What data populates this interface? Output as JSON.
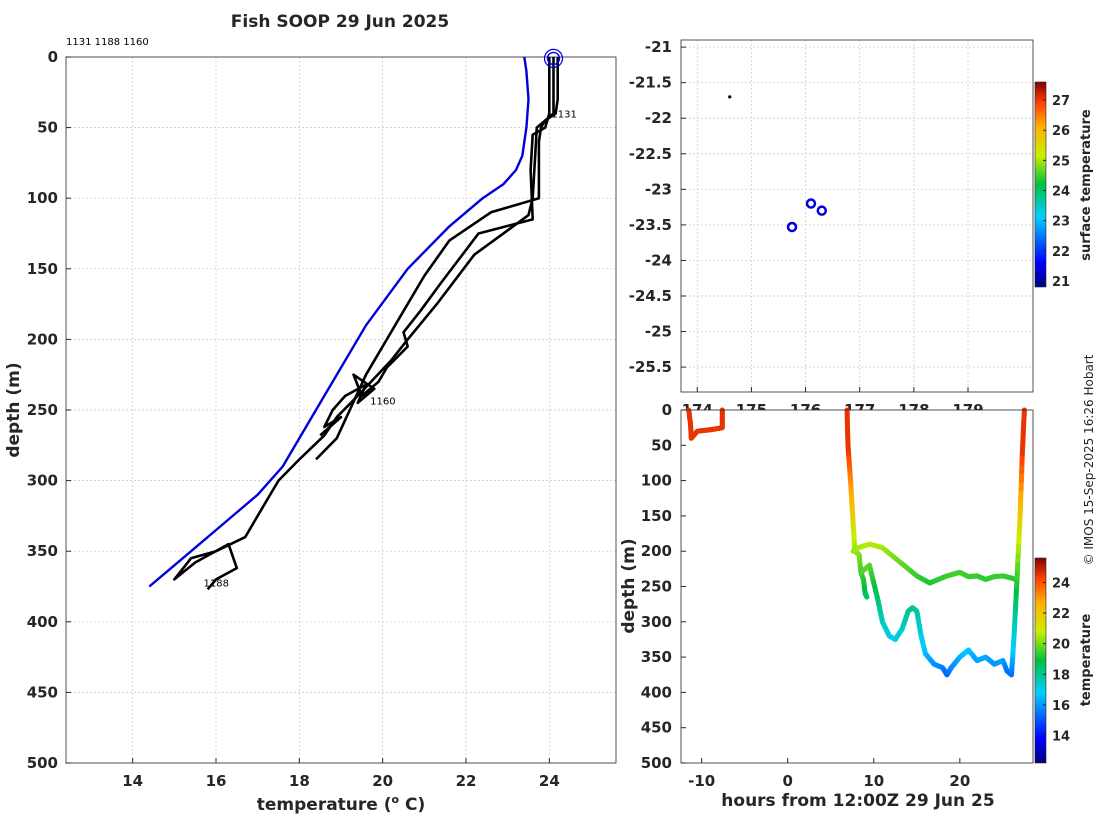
{
  "title": "Fish SOOP 29 Jun 2025",
  "credit": "© IMOS 15-Sep-2025 16:26 Hobart",
  "colors": {
    "blue": "#0000dd",
    "black": "#000000"
  },
  "chart_data": [
    {
      "type": "line",
      "id": "profile",
      "xlabel": "temperature (",
      "xlabel_sup": "o",
      "xlabel_unit": " C)",
      "ylabel": "depth (m)",
      "xlim": [
        12.4,
        25.6
      ],
      "ylim": [
        0,
        500
      ],
      "y_reversed": true,
      "xticks": [
        14,
        16,
        18,
        20,
        22,
        24
      ],
      "yticks": [
        0,
        50,
        100,
        150,
        200,
        250,
        300,
        350,
        400,
        450,
        500
      ],
      "top_labels": "1131 1188 1160",
      "series": [
        {
          "name": "climatology",
          "color": "#0000dd",
          "x": [
            23.4,
            23.45,
            23.5,
            23.45,
            23.35,
            23.2,
            22.9,
            22.4,
            21.6,
            20.6,
            19.6,
            18.6,
            17.6,
            17.0,
            16.2,
            15.2,
            14.4
          ],
          "y": [
            0,
            10,
            30,
            50,
            70,
            80,
            90,
            100,
            120,
            150,
            190,
            240,
            290,
            310,
            330,
            355,
            375
          ]
        },
        {
          "name": "1131",
          "color": "#000000",
          "label": "1131",
          "label_x": 24.05,
          "label_y": 43,
          "x": [
            24.2,
            24.2,
            24.15,
            23.9,
            23.8,
            23.75,
            23.75,
            22.6,
            21.6,
            21.0,
            20.4,
            19.6,
            18.9,
            18.4
          ],
          "y": [
            0,
            30,
            40,
            45,
            50,
            60,
            100,
            110,
            130,
            155,
            185,
            225,
            270,
            285
          ]
        },
        {
          "name": "1160",
          "color": "#000000",
          "label": "1160",
          "label_x": 19.7,
          "label_y": 246,
          "x": [
            24.0,
            24.0,
            23.9,
            23.6,
            23.55,
            23.6,
            22.3,
            21.4,
            20.9,
            20.5,
            20.6,
            20.1,
            19.9,
            19.5,
            19.3,
            19.8,
            19.4,
            19.6,
            19.1,
            18.8,
            18.6,
            19.0,
            18.5
          ],
          "y": [
            0,
            40,
            50,
            55,
            80,
            115,
            125,
            160,
            180,
            195,
            205,
            220,
            230,
            240,
            225,
            235,
            245,
            232,
            240,
            250,
            262,
            255,
            268
          ]
        },
        {
          "name": "1188",
          "color": "#000000",
          "label": "1188",
          "label_x": 15.7,
          "label_y": 375,
          "x": [
            24.1,
            24.1,
            23.7,
            23.6,
            23.5,
            22.2,
            21.3,
            20.6,
            20.2,
            19.4,
            18.9,
            18.6,
            18.0,
            17.5,
            17.1,
            16.7,
            16.0,
            15.4,
            15.0,
            15.5,
            16.3,
            16.5,
            16.0,
            15.8
          ],
          "y": [
            0,
            40,
            50,
            100,
            112,
            140,
            175,
            200,
            215,
            240,
            255,
            268,
            285,
            300,
            320,
            340,
            350,
            355,
            370,
            358,
            345,
            362,
            370,
            377
          ]
        }
      ],
      "open_circle": {
        "x": 24.1,
        "y": 1
      }
    },
    {
      "type": "scatter",
      "id": "map",
      "xlim": [
        173.7,
        180.2
      ],
      "ylim": [
        -25.85,
        -20.9
      ],
      "xticks": [
        "174",
        "175",
        "176",
        "177",
        "178",
        "179"
      ],
      "xtick_values": [
        174,
        175,
        176,
        177,
        178,
        179
      ],
      "yticks": [
        "-21",
        "-21.5",
        "-22",
        "-22.5",
        "-23",
        "-23.5",
        "-24",
        "-24.5",
        "-25",
        "-25.5"
      ],
      "ytick_values": [
        -21,
        -21.5,
        -22,
        -22.5,
        -23,
        -23.5,
        -24,
        -24.5,
        -25,
        -25.5
      ],
      "points": [
        {
          "lon": 174.6,
          "lat": -21.7,
          "kind": "dot"
        },
        {
          "lon": 176.1,
          "lat": -23.2,
          "kind": "circle"
        },
        {
          "lon": 176.3,
          "lat": -23.3,
          "kind": "circle"
        },
        {
          "lon": 175.75,
          "lat": -23.53,
          "kind": "circle"
        }
      ],
      "colorbar": {
        "label": "surface temperature",
        "min": 20.8,
        "max": 27.6,
        "ticks": [
          "21",
          "22",
          "23",
          "24",
          "25",
          "26",
          "27"
        ],
        "tick_values": [
          21,
          22,
          23,
          24,
          25,
          26,
          27
        ]
      }
    },
    {
      "type": "scatter",
      "id": "section",
      "xlabel": "hours from 12:00Z 29 Jun 25",
      "ylabel": "depth (m)",
      "xlim": [
        -12.4,
        28.5
      ],
      "ylim": [
        0,
        500
      ],
      "y_reversed": true,
      "xticks": [
        "-10",
        "0",
        "10",
        "20"
      ],
      "xtick_values": [
        -10,
        0,
        10,
        20
      ],
      "yticks": [
        "0",
        "50",
        "100",
        "150",
        "200",
        "250",
        "300",
        "350",
        "400",
        "450",
        "500"
      ],
      "ytick_values": [
        0,
        50,
        100,
        150,
        200,
        250,
        300,
        350,
        400,
        450,
        500
      ],
      "tracks": [
        {
          "t": [
            -11.5,
            -11.3,
            -11.2,
            -10.5,
            -9,
            -8,
            -7.6,
            -7.6
          ],
          "d": [
            0,
            20,
            40,
            30,
            28,
            26,
            25,
            0
          ]
        },
        {
          "t": [
            6.9,
            7.0,
            7.3,
            7.6,
            7.8,
            8.3,
            8.5,
            8.8,
            9.0,
            9.2
          ],
          "d": [
            0,
            50,
            100,
            160,
            200,
            205,
            230,
            240,
            260,
            265
          ]
        },
        {
          "t": [
            7.6,
            8.2,
            9.5,
            11,
            13,
            15,
            16.5,
            17.5,
            18.5,
            20,
            21,
            22,
            23,
            24,
            25,
            26,
            26.5
          ],
          "d": [
            200,
            195,
            190,
            195,
            215,
            235,
            245,
            240,
            235,
            230,
            236,
            235,
            240,
            236,
            235,
            238,
            240
          ]
        },
        {
          "t": [
            8.5,
            9.5,
            10.5,
            11,
            11.8,
            12.5,
            13.3,
            14,
            14.5,
            15,
            15.5,
            16,
            17,
            18,
            18.5,
            19,
            20,
            21,
            22,
            23,
            24,
            25,
            25.5,
            26,
            26.3,
            26.6,
            27,
            27.3,
            27.5
          ],
          "d": [
            230,
            220,
            270,
            300,
            320,
            325,
            310,
            285,
            280,
            285,
            320,
            345,
            360,
            365,
            375,
            365,
            350,
            340,
            355,
            350,
            360,
            355,
            370,
            375,
            320,
            250,
            150,
            50,
            0
          ]
        }
      ],
      "colorbar": {
        "label": "temperature",
        "min": 12.2,
        "max": 25.6,
        "ticks": [
          "14",
          "16",
          "18",
          "20",
          "22",
          "24"
        ],
        "tick_values": [
          14,
          16,
          18,
          20,
          22,
          24
        ]
      }
    }
  ]
}
